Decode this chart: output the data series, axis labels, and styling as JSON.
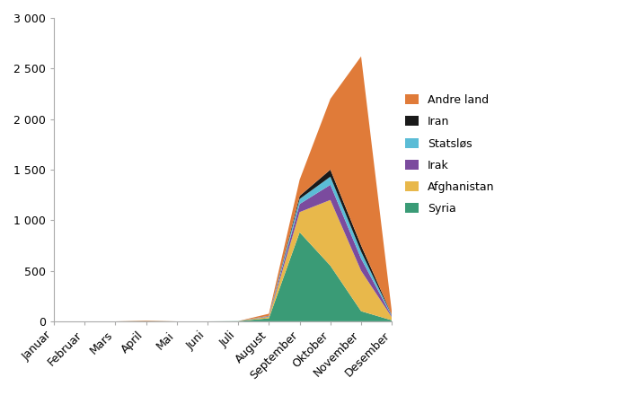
{
  "months": [
    "Januar",
    "Februar",
    "Mars",
    "April",
    "Mai",
    "Juni",
    "Juli",
    "August",
    "September",
    "Oktober",
    "November",
    "Desember"
  ],
  "series": {
    "Syria": [
      0,
      0,
      0,
      2,
      0,
      0,
      2,
      30,
      880,
      550,
      100,
      10
    ],
    "Afghanistan": [
      0,
      0,
      0,
      0,
      0,
      0,
      0,
      15,
      200,
      650,
      400,
      30
    ],
    "Irak": [
      0,
      0,
      0,
      0,
      0,
      0,
      0,
      5,
      80,
      150,
      120,
      10
    ],
    "Statslos": [
      0,
      0,
      0,
      0,
      0,
      0,
      0,
      3,
      50,
      80,
      70,
      8
    ],
    "Iran": [
      0,
      0,
      0,
      0,
      0,
      0,
      0,
      2,
      30,
      70,
      60,
      5
    ],
    "Andre land": [
      0,
      0,
      0,
      5,
      0,
      0,
      0,
      20,
      160,
      700,
      1870,
      30
    ]
  },
  "colors": {
    "Syria": "#3a9b76",
    "Afghanistan": "#e8b84b",
    "Irak": "#7b4b9e",
    "Statslos": "#5bbcd6",
    "Iran": "#1a1a1a",
    "Andre land": "#e07b39"
  },
  "legend_labels": {
    "Syria": "Syria",
    "Afghanistan": "Afghanistan",
    "Irak": "Irak",
    "Statslos": "Statsløs",
    "Iran": "Iran",
    "Andre land": "Andre land"
  },
  "ylim": [
    0,
    3000
  ],
  "yticks": [
    0,
    500,
    1000,
    1500,
    2000,
    2500,
    3000
  ],
  "ytick_labels": [
    "0",
    "500",
    "1 000",
    "1 500",
    "2 000",
    "2 500",
    "3 000"
  ],
  "background_color": "#ffffff",
  "spine_color": "#aaaaaa"
}
